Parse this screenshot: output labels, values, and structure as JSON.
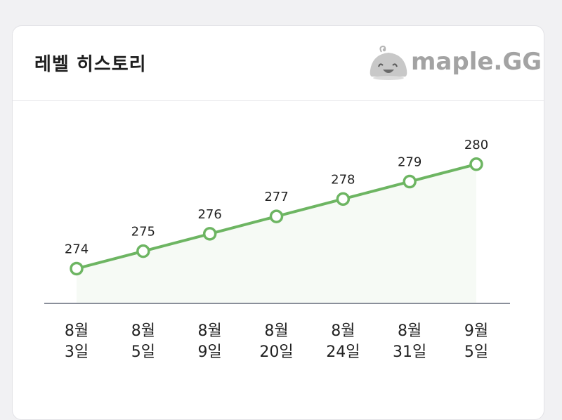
{
  "card": {
    "title": "레벨 히스토리",
    "brand": "maple.GG"
  },
  "chart_data": {
    "type": "line",
    "title": "",
    "xlabel": "",
    "ylabel": "",
    "categories": [
      [
        "8월",
        "3일"
      ],
      [
        "8월",
        "5일"
      ],
      [
        "8월",
        "9일"
      ],
      [
        "8월",
        "20일"
      ],
      [
        "8월",
        "24일"
      ],
      [
        "8월",
        "31일"
      ],
      [
        "9월",
        "5일"
      ]
    ],
    "values": [
      274,
      275,
      276,
      277,
      278,
      279,
      280
    ],
    "ylim": [
      272,
      281
    ],
    "grid": false,
    "legend": "none",
    "colors": {
      "line": "#6db562",
      "marker_fill": "#ffffff",
      "area_fill": "#f6faf5",
      "axis": "#8a8f9a"
    }
  }
}
